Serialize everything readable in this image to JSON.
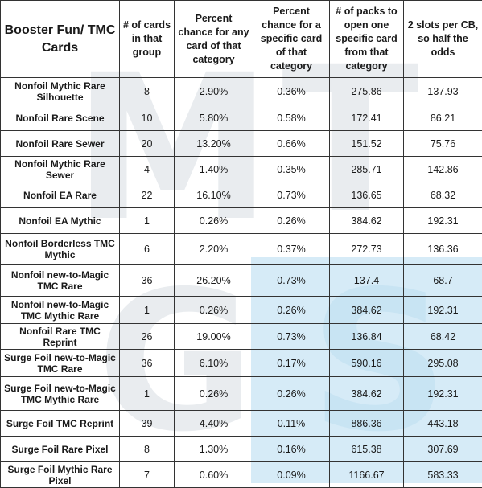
{
  "table": {
    "headers": [
      "Booster Fun/ TMC Cards",
      "# of cards in that group",
      "Percent chance for any card of that category",
      "Percent chance for a specific card of that category",
      "# of packs to open one specific card from that category",
      "2 slots per CB, so half the odds"
    ],
    "rows": [
      [
        "Nonfoil Mythic Rare Silhouette",
        "8",
        "2.90%",
        "0.36%",
        "275.86",
        "137.93"
      ],
      [
        "Nonfoil Rare Scene",
        "10",
        "5.80%",
        "0.58%",
        "172.41",
        "86.21"
      ],
      [
        "Nonfoil Rare Sewer",
        "20",
        "13.20%",
        "0.66%",
        "151.52",
        "75.76"
      ],
      [
        "Nonfoil Mythic Rare Sewer",
        "4",
        "1.40%",
        "0.35%",
        "285.71",
        "142.86"
      ],
      [
        "Nonfoil EA Rare",
        "22",
        "16.10%",
        "0.73%",
        "136.65",
        "68.32"
      ],
      [
        "Nonfoil EA Mythic",
        "1",
        "0.26%",
        "0.26%",
        "384.62",
        "192.31"
      ],
      [
        "Nonfoil Borderless TMC Mythic",
        "6",
        "2.20%",
        "0.37%",
        "272.73",
        "136.36"
      ],
      [
        "Nonfoil new-to-Magic TMC Rare",
        "36",
        "26.20%",
        "0.73%",
        "137.4",
        "68.7"
      ],
      [
        "Nonfoil new-to-Magic TMC Mythic Rare",
        "1",
        "0.26%",
        "0.26%",
        "384.62",
        "192.31"
      ],
      [
        "Nonfoil Rare TMC Reprint",
        "26",
        "19.00%",
        "0.73%",
        "136.84",
        "68.42"
      ],
      [
        "Surge Foil new-to-Magic TMC Rare",
        "36",
        "6.10%",
        "0.17%",
        "590.16",
        "295.08"
      ],
      [
        "Surge Foil new-to-Magic TMC Mythic Rare",
        "1",
        "0.26%",
        "0.26%",
        "384.62",
        "192.31"
      ],
      [
        "Surge Foil TMC Reprint",
        "39",
        "4.40%",
        "0.11%",
        "886.36",
        "443.18"
      ],
      [
        "Surge Foil Rare Pixel",
        "8",
        "1.30%",
        "0.16%",
        "615.38",
        "307.69"
      ],
      [
        "Surge Foil Mythic Rare Pixel",
        "7",
        "0.60%",
        "0.09%",
        "1166.67",
        "583.33"
      ]
    ]
  },
  "watermark": {
    "letters": [
      "M",
      "T",
      "G",
      "S"
    ],
    "color": "#cfd6dd",
    "panel_color": "#d6ebf7"
  }
}
